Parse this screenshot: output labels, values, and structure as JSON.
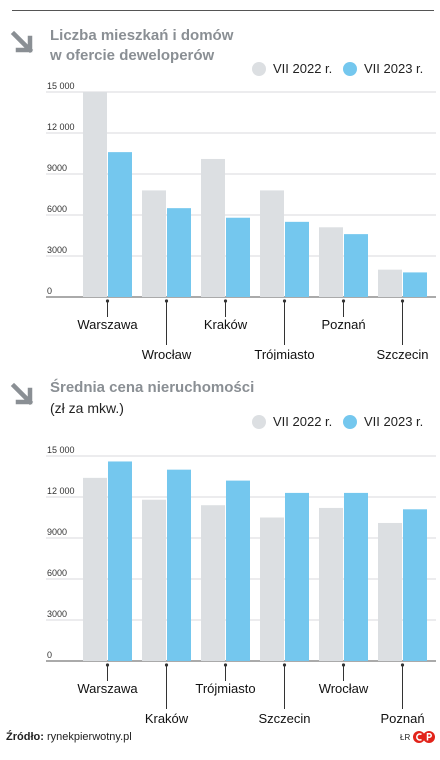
{
  "charts": [
    {
      "title": "Liczba mieszkań i domów",
      "title2": "w ofercie deweloperów",
      "subtitle": "",
      "legend": [
        "VII 2022 r.",
        "VII 2023 r."
      ]
    },
    {
      "title": "Średnia cena nieruchomości",
      "title2": "",
      "subtitle": "(zł za mkw.)",
      "legend": [
        "VII 2022 r.",
        "VII 2023 r."
      ]
    }
  ],
  "colors": {
    "series_2022": "#dcdfe2",
    "series_2023": "#74c7ee",
    "title": "#8a8f94",
    "arrow": "#8a8f94"
  },
  "icons": {
    "arrow": "arrow-down-right-icon",
    "logo": "cp-logo-icon"
  },
  "footer": {
    "label": "Źródło:",
    "source": "rynekpierwotny.pl",
    "lr": "ŁR"
  },
  "chart_data": [
    {
      "type": "bar",
      "title": "Liczba mieszkań i domów w ofercie deweloperów",
      "categories": [
        "Warszawa",
        "Wrocław",
        "Kraków",
        "Trójmiasto",
        "Poznań",
        "Szczecin"
      ],
      "series": [
        {
          "name": "VII 2022 r.",
          "values": [
            15000,
            7800,
            10100,
            7800,
            5100,
            2000
          ]
        },
        {
          "name": "VII 2023 r.",
          "values": [
            10600,
            6500,
            5800,
            5500,
            4600,
            1800
          ]
        }
      ],
      "yticks": [
        "0",
        "3000",
        "6000",
        "9000",
        "12 000",
        "15 000"
      ],
      "ylim": [
        0,
        15000
      ],
      "grid": true
    },
    {
      "type": "bar",
      "title": "Średnia cena nieruchomości (zł za mkw.)",
      "categories": [
        "Warszawa",
        "Kraków",
        "Trójmiasto",
        "Szczecin",
        "Wrocław",
        "Poznań"
      ],
      "series": [
        {
          "name": "VII 2022 r.",
          "values": [
            13400,
            11800,
            11400,
            10500,
            11200,
            10100
          ]
        },
        {
          "name": "VII 2023 r.",
          "values": [
            14600,
            14000,
            13200,
            12300,
            12300,
            11100
          ]
        }
      ],
      "yticks": [
        "0",
        "3000",
        "6000",
        "9000",
        "12 000",
        "15 000"
      ],
      "ylim": [
        0,
        15000
      ],
      "grid": true
    }
  ]
}
